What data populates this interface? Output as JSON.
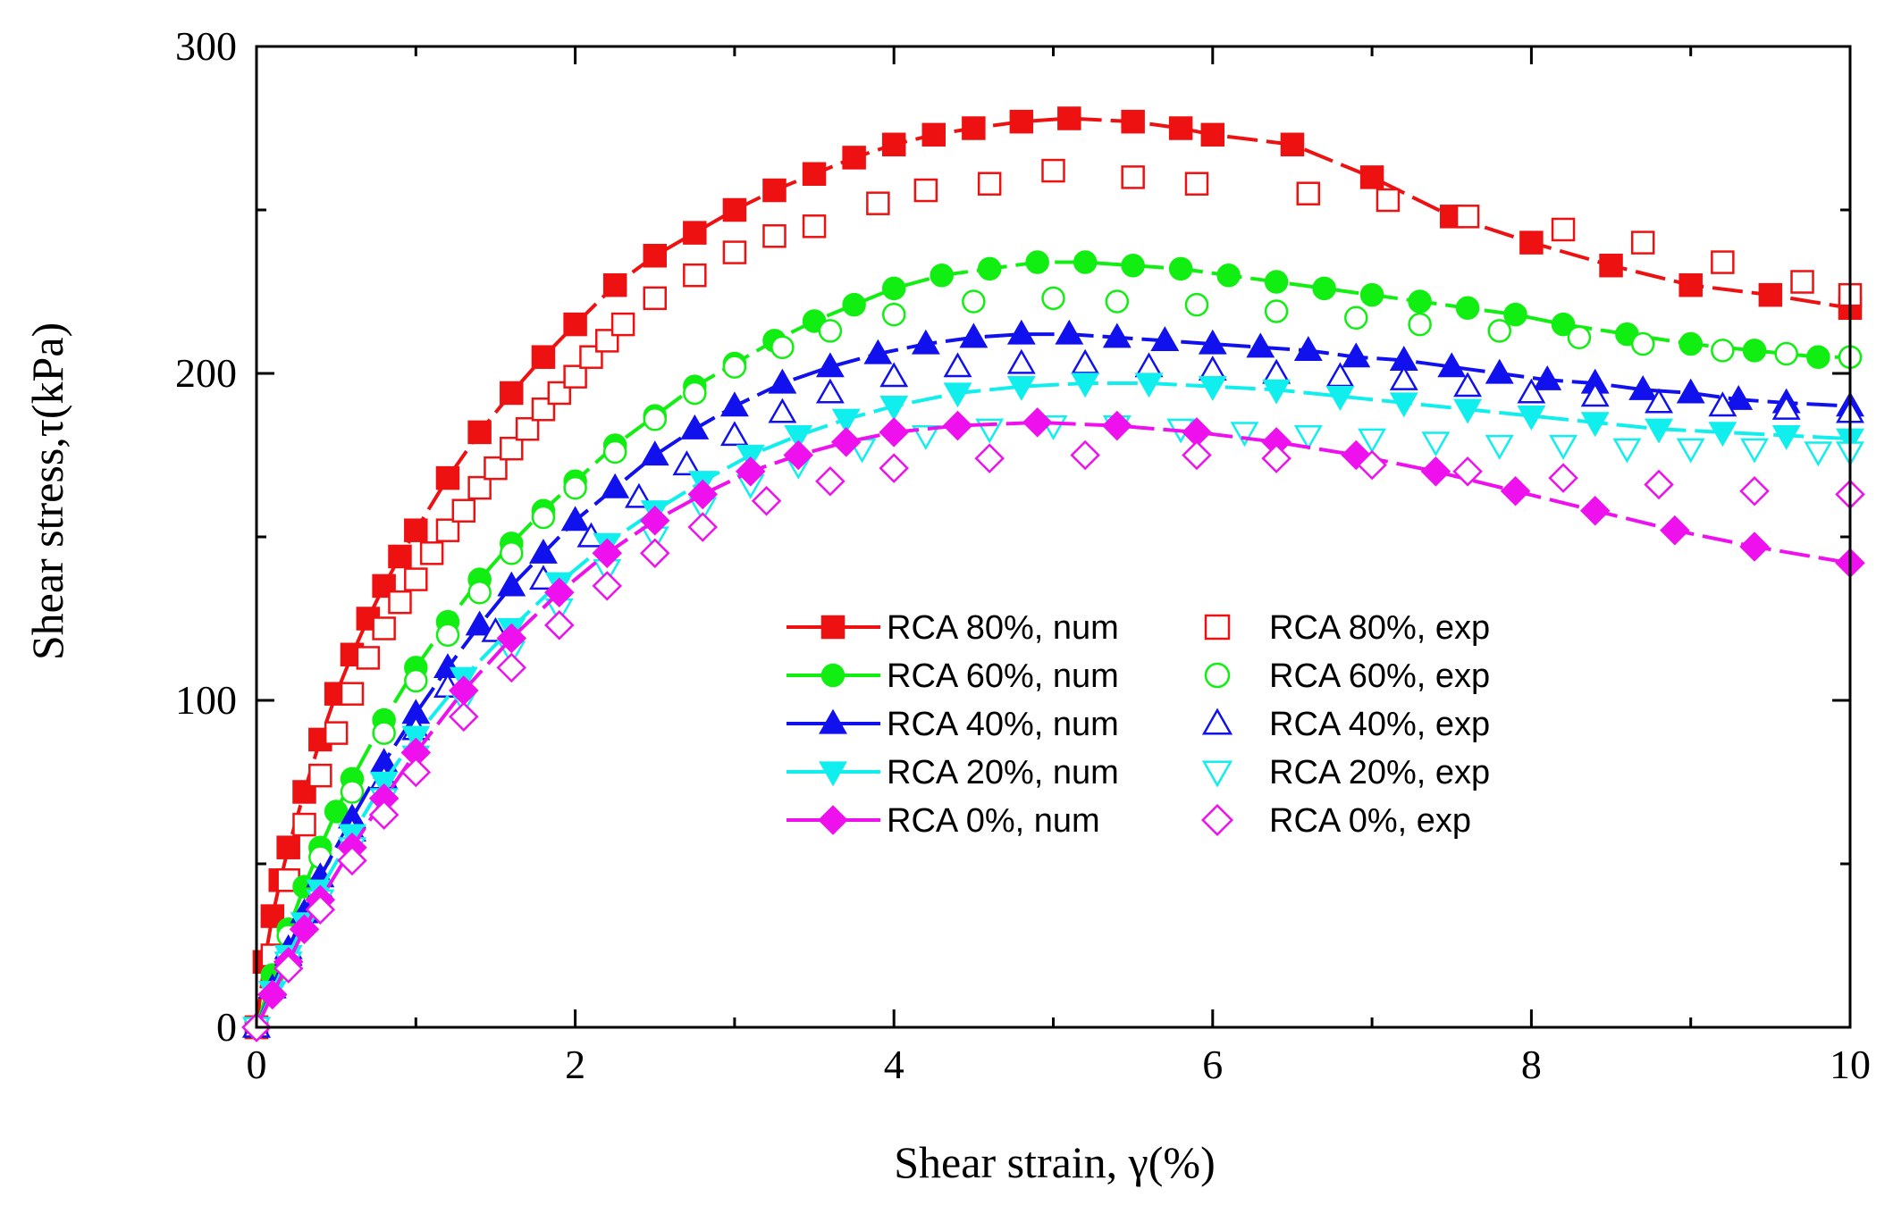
{
  "chart_data": {
    "type": "line",
    "xlabel": "Shear strain, γ(%)",
    "ylabel": "Shear stress,τ(kPa)",
    "xlim": [
      0,
      10
    ],
    "ylim": [
      0,
      300
    ],
    "x_ticks": [
      0,
      2,
      4,
      6,
      8,
      10
    ],
    "y_ticks": [
      0,
      100,
      200,
      300
    ],
    "legend_position": "center-right",
    "grid": false,
    "series": [
      {
        "name": "RCA 80%, num",
        "color": "#ee1111",
        "marker": "square",
        "filled": true,
        "line": "dash",
        "x": [
          0,
          0.05,
          0.1,
          0.15,
          0.2,
          0.3,
          0.4,
          0.5,
          0.6,
          0.7,
          0.8,
          0.9,
          1.0,
          1.2,
          1.4,
          1.6,
          1.8,
          2.0,
          2.25,
          2.5,
          2.75,
          3.0,
          3.25,
          3.5,
          3.75,
          4.0,
          4.25,
          4.5,
          4.8,
          5.1,
          5.5,
          5.8,
          6.0,
          6.5,
          7.0,
          7.5,
          8.0,
          8.5,
          9.0,
          9.5,
          10.0
        ],
        "y": [
          0,
          20,
          34,
          45,
          55,
          72,
          88,
          102,
          114,
          125,
          135,
          144,
          152,
          168,
          182,
          194,
          205,
          215,
          227,
          236,
          243,
          250,
          256,
          261,
          266,
          270,
          273,
          275,
          277,
          278,
          277,
          275,
          273,
          270,
          260,
          248,
          240,
          233,
          227,
          224,
          220
        ]
      },
      {
        "name": "RCA 80%, exp",
        "color": "#ee1111",
        "marker": "square",
        "filled": false,
        "line": "none",
        "x": [
          0,
          0.1,
          0.2,
          0.3,
          0.4,
          0.5,
          0.6,
          0.7,
          0.8,
          0.9,
          1.0,
          1.1,
          1.2,
          1.3,
          1.4,
          1.5,
          1.6,
          1.7,
          1.8,
          1.9,
          2.0,
          2.1,
          2.2,
          2.3,
          2.5,
          2.75,
          3.0,
          3.25,
          3.5,
          3.9,
          4.2,
          4.6,
          5.0,
          5.5,
          5.9,
          6.6,
          7.1,
          7.6,
          8.2,
          8.7,
          9.2,
          9.7,
          10.0
        ],
        "y": [
          0,
          22,
          45,
          62,
          77,
          90,
          102,
          113,
          122,
          130,
          137,
          145,
          152,
          158,
          165,
          171,
          177,
          183,
          189,
          194,
          199,
          205,
          210,
          215,
          223,
          230,
          237,
          242,
          245,
          252,
          256,
          258,
          262,
          260,
          258,
          255,
          253,
          248,
          244,
          240,
          234,
          228,
          224
        ]
      },
      {
        "name": "RCA 60%, num",
        "color": "#11ee11",
        "marker": "circle",
        "filled": true,
        "line": "dash",
        "x": [
          0,
          0.1,
          0.2,
          0.3,
          0.4,
          0.5,
          0.6,
          0.8,
          1.0,
          1.2,
          1.4,
          1.6,
          1.8,
          2.0,
          2.25,
          2.5,
          2.75,
          3.0,
          3.25,
          3.5,
          3.75,
          4.0,
          4.3,
          4.6,
          4.9,
          5.2,
          5.5,
          5.8,
          6.1,
          6.4,
          6.7,
          7.0,
          7.3,
          7.6,
          7.9,
          8.2,
          8.6,
          9.0,
          9.4,
          9.8,
          10.0
        ],
        "y": [
          0,
          16,
          30,
          43,
          55,
          66,
          76,
          94,
          110,
          124,
          137,
          148,
          158,
          167,
          178,
          187,
          196,
          203,
          210,
          216,
          221,
          226,
          230,
          232,
          234,
          234,
          233,
          232,
          230,
          228,
          226,
          224,
          222,
          220,
          218,
          215,
          212,
          209,
          207,
          205,
          205
        ]
      },
      {
        "name": "RCA 60%, exp",
        "color": "#11ee11",
        "marker": "circle",
        "filled": false,
        "line": "none",
        "x": [
          0,
          0.2,
          0.4,
          0.6,
          0.8,
          1.0,
          1.2,
          1.4,
          1.6,
          1.8,
          2.0,
          2.25,
          2.5,
          2.75,
          3.0,
          3.3,
          3.6,
          4.0,
          4.5,
          5.0,
          5.4,
          5.9,
          6.4,
          6.9,
          7.3,
          7.8,
          8.3,
          8.7,
          9.2,
          9.6,
          10.0
        ],
        "y": [
          0,
          28,
          52,
          72,
          90,
          106,
          120,
          133,
          145,
          156,
          165,
          176,
          186,
          194,
          202,
          208,
          213,
          218,
          222,
          223,
          222,
          221,
          219,
          217,
          215,
          213,
          211,
          209,
          207,
          206,
          205
        ]
      },
      {
        "name": "RCA 40%, num",
        "color": "#1111ee",
        "marker": "triangle-up",
        "filled": true,
        "line": "dash",
        "x": [
          0,
          0.1,
          0.2,
          0.3,
          0.4,
          0.6,
          0.8,
          1.0,
          1.2,
          1.4,
          1.6,
          1.8,
          2.0,
          2.25,
          2.5,
          2.75,
          3.0,
          3.3,
          3.6,
          3.9,
          4.2,
          4.5,
          4.8,
          5.1,
          5.4,
          5.7,
          6.0,
          6.3,
          6.6,
          6.9,
          7.2,
          7.5,
          7.8,
          8.1,
          8.4,
          8.7,
          9.0,
          9.3,
          9.6,
          10.0
        ],
        "y": [
          0,
          12,
          24,
          35,
          46,
          64,
          81,
          96,
          110,
          123,
          135,
          145,
          155,
          165,
          175,
          183,
          190,
          197,
          202,
          206,
          209,
          211,
          212,
          212,
          211,
          210,
          209,
          208,
          207,
          205,
          204,
          202,
          200,
          198,
          197,
          195,
          194,
          192,
          191,
          190
        ]
      },
      {
        "name": "RCA 40%, exp",
        "color": "#1111ee",
        "marker": "triangle-up",
        "filled": false,
        "line": "none",
        "x": [
          0,
          0.2,
          0.4,
          0.6,
          0.8,
          1.0,
          1.2,
          1.5,
          1.8,
          2.1,
          2.4,
          2.7,
          3.0,
          3.3,
          3.6,
          4.0,
          4.4,
          4.8,
          5.2,
          5.6,
          6.0,
          6.4,
          6.8,
          7.2,
          7.6,
          8.0,
          8.4,
          8.8,
          9.2,
          9.6,
          10.0
        ],
        "y": [
          0,
          22,
          42,
          60,
          76,
          91,
          104,
          121,
          137,
          150,
          162,
          172,
          181,
          188,
          194,
          199,
          202,
          203,
          203,
          202,
          201,
          200,
          199,
          198,
          196,
          194,
          193,
          191,
          190,
          189,
          188
        ]
      },
      {
        "name": "RCA 20%, num",
        "color": "#11eeee",
        "marker": "triangle-down",
        "filled": true,
        "line": "dash",
        "x": [
          0,
          0.1,
          0.2,
          0.3,
          0.4,
          0.6,
          0.8,
          1.0,
          1.3,
          1.6,
          1.9,
          2.2,
          2.5,
          2.8,
          3.1,
          3.4,
          3.7,
          4.0,
          4.4,
          4.8,
          5.2,
          5.6,
          6.0,
          6.4,
          6.8,
          7.2,
          7.6,
          8.0,
          8.4,
          8.8,
          9.2,
          9.6,
          10.0
        ],
        "y": [
          0,
          11,
          22,
          32,
          42,
          59,
          75,
          89,
          107,
          122,
          136,
          148,
          158,
          167,
          175,
          181,
          186,
          190,
          194,
          196,
          197,
          197,
          196,
          195,
          193,
          191,
          189,
          187,
          185,
          183,
          182,
          181,
          180
        ]
      },
      {
        "name": "RCA 20%, exp",
        "color": "#11eeee",
        "marker": "triangle-down",
        "filled": false,
        "line": "none",
        "x": [
          0,
          0.2,
          0.4,
          0.6,
          0.8,
          1.0,
          1.3,
          1.6,
          1.9,
          2.2,
          2.5,
          2.8,
          3.1,
          3.4,
          3.8,
          4.2,
          4.6,
          5.0,
          5.4,
          5.8,
          6.2,
          6.6,
          7.0,
          7.4,
          7.8,
          8.2,
          8.6,
          9.0,
          9.4,
          9.8,
          10.0
        ],
        "y": [
          0,
          20,
          39,
          55,
          70,
          83,
          100,
          115,
          128,
          140,
          150,
          159,
          166,
          172,
          177,
          181,
          183,
          184,
          184,
          183,
          182,
          181,
          180,
          179,
          178,
          178,
          177,
          177,
          177,
          176,
          176
        ]
      },
      {
        "name": "RCA   0%, num",
        "color": "#ee11ee",
        "marker": "diamond",
        "filled": true,
        "line": "dash",
        "x": [
          0,
          0.1,
          0.2,
          0.3,
          0.4,
          0.6,
          0.8,
          1.0,
          1.3,
          1.6,
          1.9,
          2.2,
          2.5,
          2.8,
          3.1,
          3.4,
          3.7,
          4.0,
          4.4,
          4.9,
          5.4,
          5.9,
          6.4,
          6.9,
          7.4,
          7.9,
          8.4,
          8.9,
          9.4,
          10.0
        ],
        "y": [
          0,
          10,
          20,
          30,
          39,
          55,
          70,
          84,
          103,
          119,
          133,
          145,
          155,
          163,
          170,
          175,
          179,
          182,
          184,
          185,
          184,
          182,
          179,
          175,
          170,
          164,
          158,
          152,
          147,
          142
        ]
      },
      {
        "name": "RCA   0%, exp",
        "color": "#ee11ee",
        "marker": "diamond",
        "filled": false,
        "line": "none",
        "x": [
          0,
          0.2,
          0.4,
          0.6,
          0.8,
          1.0,
          1.3,
          1.6,
          1.9,
          2.2,
          2.5,
          2.8,
          3.2,
          3.6,
          4.0,
          4.6,
          5.2,
          5.9,
          6.4,
          7.0,
          7.6,
          8.2,
          8.8,
          9.4,
          10.0
        ],
        "y": [
          0,
          18,
          36,
          51,
          65,
          78,
          95,
          110,
          123,
          135,
          145,
          153,
          161,
          167,
          171,
          174,
          175,
          175,
          174,
          172,
          170,
          168,
          166,
          164,
          163
        ]
      }
    ]
  }
}
